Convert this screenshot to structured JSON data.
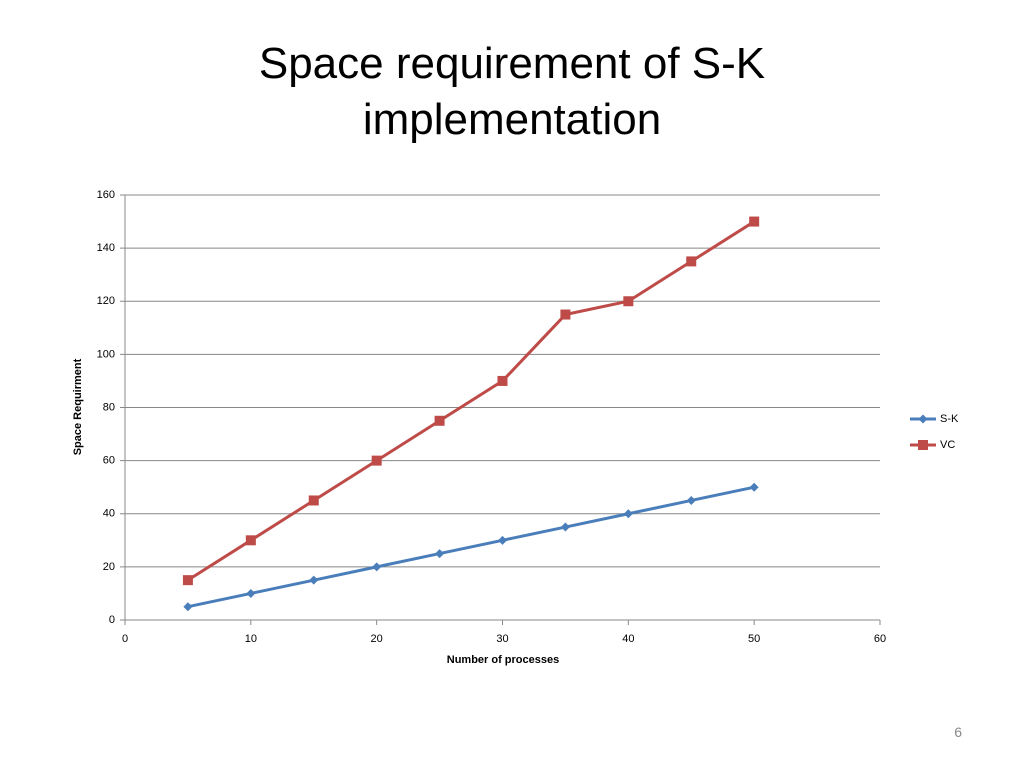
{
  "chart_data": {
    "type": "line",
    "title": "Space requirement of S-K implementation",
    "x_label": "Number of processes",
    "y_label": "Space Requirment",
    "x": [
      5,
      10,
      15,
      20,
      25,
      30,
      35,
      40,
      45,
      50
    ],
    "series": [
      {
        "name": "S-K",
        "color": "#4a7ebb",
        "marker": "diamond",
        "values": [
          5,
          10,
          15,
          20,
          25,
          30,
          35,
          40,
          45,
          50
        ]
      },
      {
        "name": "VC",
        "color": "#be4b48",
        "marker": "square",
        "values": [
          15,
          30,
          45,
          60,
          75,
          90,
          115,
          120,
          135,
          150
        ]
      }
    ],
    "xlim": [
      0,
      60
    ],
    "xticks": [
      0,
      10,
      20,
      30,
      40,
      50,
      60
    ],
    "ylim": [
      0,
      160
    ],
    "yticks": [
      0,
      20,
      40,
      60,
      80,
      100,
      120,
      140,
      160
    ],
    "grid": true,
    "legend": "right"
  },
  "page_number": 6
}
